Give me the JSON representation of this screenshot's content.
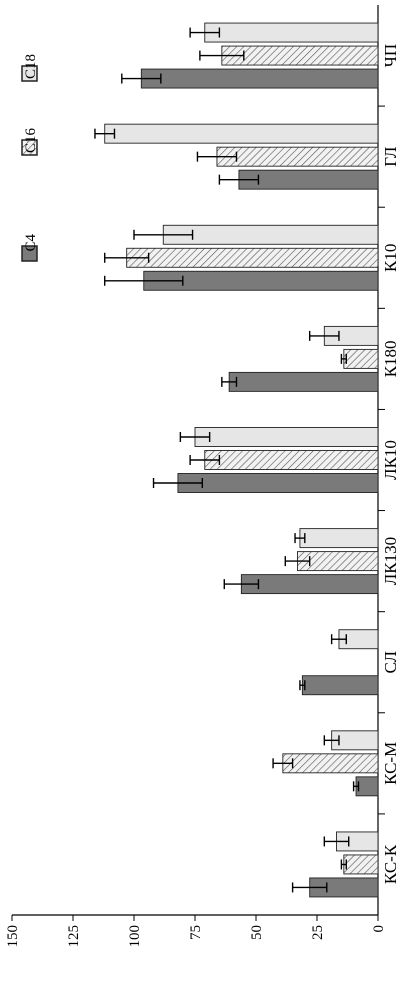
{
  "chart_data": {
    "type": "bar",
    "orientation": "rotated-90-ccw",
    "title": "",
    "xlabel": "",
    "ylabel": "",
    "ylim": [
      0,
      150
    ],
    "yticks": [
      0,
      25,
      50,
      75,
      100,
      125,
      150
    ],
    "ytick_labels": [
      "0",
      "25",
      "50",
      "75",
      "100",
      "125",
      "150"
    ],
    "categories": [
      "ЧП",
      "ГЛ",
      "К10",
      "К180",
      "ЛК10",
      "ЛК130",
      "СЛ",
      "КС-М",
      "КС-К"
    ],
    "legend_position": "top-right",
    "series": [
      {
        "name": "C4",
        "pattern": "solid",
        "color": "#7a7a7a",
        "values": [
          97,
          57,
          96,
          61,
          82,
          56,
          31,
          9,
          28
        ],
        "errors": [
          8,
          8,
          16,
          3,
          10,
          7,
          1,
          1,
          7
        ]
      },
      {
        "name": "C16",
        "pattern": "hatched",
        "color": "#e8e8e8",
        "values": [
          64,
          66,
          103,
          14,
          71,
          33,
          null,
          39,
          14
        ],
        "errors": [
          9,
          8,
          9,
          1,
          6,
          5,
          null,
          4,
          1
        ]
      },
      {
        "name": "C18",
        "pattern": "light",
        "color": "#e6e6e6",
        "values": [
          71,
          112,
          88,
          22,
          75,
          32,
          16,
          19,
          17
        ],
        "errors": [
          6,
          4,
          12,
          6,
          6,
          2,
          3,
          3,
          5
        ]
      }
    ]
  }
}
